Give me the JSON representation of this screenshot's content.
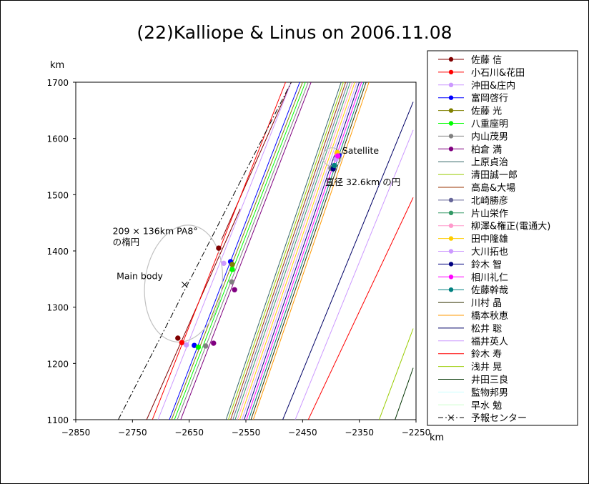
{
  "chart_data": {
    "type": "scatter",
    "title": "(22)Kalliope & Linus on 2006.11.08",
    "xunit": "km",
    "yunit": "km",
    "xlim": [
      -2850,
      -2250
    ],
    "ylim": [
      1100,
      1700
    ],
    "xticks": [
      -2850,
      -2750,
      -2650,
      -2550,
      -2450,
      -2350,
      -2250
    ],
    "yticks": [
      1100,
      1200,
      1300,
      1400,
      1500,
      1600,
      1700
    ],
    "grid": false,
    "legend_position": "right",
    "annotations": [
      {
        "text": "209 × 136km PA8°",
        "x": -2785,
        "y": 1430
      },
      {
        "text": "の楕円",
        "x": -2785,
        "y": 1410
      },
      {
        "text": "Main body",
        "x": -2778,
        "y": 1350
      },
      {
        "text": "Satellite",
        "x": -2380,
        "y": 1573
      },
      {
        "text": "直径 32.6km の円",
        "x": -2410,
        "y": 1517
      }
    ],
    "main_ellipse": {
      "center": [
        -2660,
        1342
      ],
      "major_axis_km": 209,
      "minor_axis_km": 136,
      "pa_deg": 8
    },
    "satellite_circle": {
      "center": [
        -2398,
        1567
      ],
      "diameter_km": 32.6
    },
    "prediction_line": {
      "name": "予報センター",
      "x": [
        -2775,
        -2470
      ],
      "y": [
        1100,
        1700
      ],
      "center_mark": [
        -2658,
        1340
      ]
    },
    "series": [
      {
        "name": "佐藤 信",
        "color": "#800000",
        "marker": "circle",
        "points": [
          [
            -2670,
            1245
          ],
          [
            -2598,
            1405
          ]
        ],
        "lines": [
          [
            -2725,
            1100,
            -2560,
            1475
          ],
          [
            -2593,
            1420,
            -2470,
            1700
          ]
        ]
      },
      {
        "name": "小石川&花田",
        "color": "#ff0000",
        "marker": "circle",
        "points": [
          [
            -2663,
            1237
          ]
        ],
        "lines": [
          [
            -2715,
            1100,
            -2480,
            1700
          ]
        ]
      },
      {
        "name": "沖田&庄内",
        "color": "#cc99ff",
        "marker": "circle",
        "points": [
          [
            -2655,
            1233
          ],
          [
            -2589,
            1378
          ]
        ],
        "lines": [
          [
            -2705,
            1100,
            -2470,
            1700
          ]
        ]
      },
      {
        "name": "富岡啓行",
        "color": "#0000ff",
        "marker": "circle",
        "points": [
          [
            -2641,
            1232
          ],
          [
            -2577,
            1381
          ],
          [
            -2386,
            1570
          ]
        ],
        "lines": [
          [
            -2685,
            1100,
            -2455,
            1700
          ]
        ]
      },
      {
        "name": "佐藤 光",
        "color": "#808000",
        "marker": "circle",
        "points": [
          [
            -2574,
            1376
          ],
          [
            -2388,
            1568
          ]
        ],
        "lines": [
          [
            -2681,
            1100,
            -2450,
            1700
          ]
        ]
      },
      {
        "name": "八重座明",
        "color": "#00ff00",
        "marker": "circle",
        "points": [
          [
            -2634,
            1229
          ],
          [
            -2574,
            1367
          ]
        ],
        "lines": [
          [
            -2676,
            1100,
            -2445,
            1700
          ]
        ]
      },
      {
        "name": "内山茂男",
        "color": "#808080",
        "marker": "circle",
        "points": [
          [
            -2621,
            1231
          ],
          [
            -2575,
            1345
          ],
          [
            -2400,
            1547
          ]
        ],
        "lines": [
          [
            -2671,
            1100,
            -2440,
            1700
          ]
        ]
      },
      {
        "name": "柏倉 満",
        "color": "#800080",
        "marker": "circle",
        "points": [
          [
            -2607,
            1236
          ],
          [
            -2570,
            1331
          ]
        ],
        "lines": [
          [
            -2665,
            1100,
            -2435,
            1700
          ]
        ]
      },
      {
        "name": "上原貞治",
        "color": "#336666",
        "marker": "none",
        "points": [],
        "lines": [
          [
            -2585,
            1100,
            -2382,
            1700
          ]
        ]
      },
      {
        "name": "清田誠一郎",
        "color": "#99cc00",
        "marker": "none",
        "points": [],
        "lines": [
          [
            -2581,
            1100,
            -2378,
            1700
          ]
        ]
      },
      {
        "name": "高島&大場",
        "color": "#993300",
        "marker": "none",
        "points": [],
        "lines": [
          [
            -2577,
            1100,
            -2374,
            1700
          ]
        ]
      },
      {
        "name": "北崎勝彦",
        "color": "#666699",
        "marker": "circle",
        "points": [
          [
            -2392,
            1564
          ]
        ],
        "lines": [
          [
            -2573,
            1100,
            -2370,
            1700
          ]
        ]
      },
      {
        "name": "片山栄作",
        "color": "#339966",
        "marker": "circle",
        "points": [
          [
            -2396,
            1548
          ]
        ],
        "lines": [
          [
            -2569,
            1100,
            -2366,
            1700
          ]
        ]
      },
      {
        "name": "柳澤&権正(電通大)",
        "color": "#ff99cc",
        "marker": "circle",
        "points": [
          [
            -2390,
            1572
          ]
        ],
        "lines": [
          [
            -2565,
            1100,
            -2362,
            1700
          ]
        ]
      },
      {
        "name": "田中隆雄",
        "color": "#ffcc00",
        "marker": "circle",
        "points": [
          [
            -2389,
            1575
          ]
        ],
        "lines": [
          [
            -2561,
            1100,
            -2358,
            1700
          ]
        ]
      },
      {
        "name": "大川拓也",
        "color": "#cc99ff",
        "marker": "circle",
        "points": [
          [
            -2391,
            1563
          ]
        ],
        "lines": [
          [
            -2557,
            1100,
            -2354,
            1700
          ]
        ]
      },
      {
        "name": "鈴木 智",
        "color": "#000080",
        "marker": "circle",
        "points": [
          [
            -2396,
            1546
          ]
        ],
        "lines": [
          [
            -2553,
            1100,
            -2350,
            1700
          ]
        ]
      },
      {
        "name": "相川礼仁",
        "color": "#ff00ff",
        "marker": "circle",
        "points": [
          [
            -2388,
            1569
          ]
        ],
        "lines": [
          [
            -2549,
            1100,
            -2346,
            1700
          ]
        ]
      },
      {
        "name": "佐藤幹哉",
        "color": "#008080",
        "marker": "circle",
        "points": [
          [
            -2394,
            1552
          ]
        ],
        "lines": [
          [
            -2545,
            1100,
            -2342,
            1700
          ]
        ]
      },
      {
        "name": "川村 晶",
        "color": "#333300",
        "marker": "none",
        "points": [],
        "lines": [
          [
            -2541,
            1100,
            -2338,
            1700
          ]
        ]
      },
      {
        "name": "橋本秋恵",
        "color": "#ff9900",
        "marker": "none",
        "points": [],
        "lines": [
          [
            -2537,
            1100,
            -2333,
            1700
          ]
        ]
      },
      {
        "name": "松井 聡",
        "color": "#000066",
        "marker": "none",
        "points": [],
        "lines": [
          [
            -2485,
            1100,
            -2255,
            1665
          ]
        ]
      },
      {
        "name": "福井英人",
        "color": "#cc99ff",
        "marker": "none",
        "points": [],
        "lines": [
          [
            -2463,
            1100,
            -2255,
            1615
          ]
        ]
      },
      {
        "name": "鈴木 寿",
        "color": "#ff0000",
        "marker": "none",
        "points": [],
        "lines": [
          [
            -2440,
            1100,
            -2255,
            1495
          ]
        ]
      },
      {
        "name": "浅井 晃",
        "color": "#99cc00",
        "marker": "none",
        "points": [],
        "lines": [
          [
            -2315,
            1100,
            -2255,
            1262
          ]
        ]
      },
      {
        "name": "井田三良",
        "color": "#003300",
        "marker": "none",
        "points": [],
        "lines": [
          [
            -2287,
            1100,
            -2255,
            1192
          ]
        ]
      },
      {
        "name": "監物邦男",
        "color": "#ccffff",
        "marker": "none",
        "points": [],
        "lines": []
      },
      {
        "name": "早水 勉",
        "color": "#ccffcc",
        "marker": "none",
        "points": [],
        "lines": []
      },
      {
        "name": "予報センター",
        "color": "#000000",
        "marker": "cross",
        "dash": true,
        "points": [],
        "lines": []
      }
    ]
  }
}
